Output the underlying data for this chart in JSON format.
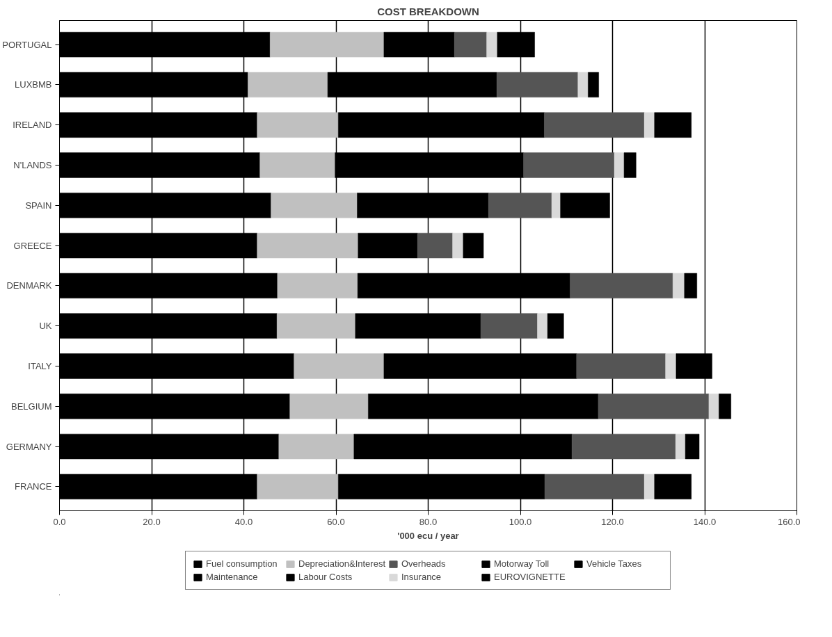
{
  "chart_data": {
    "type": "bar",
    "orientation": "horizontal",
    "stacked": true,
    "title": "COST BREAKDOWN",
    "xlabel": "'000 ecu / year",
    "categories": [
      "PORTUGAL",
      "LUXBMB",
      "IRELAND",
      "N'LANDS",
      "SPAIN",
      "GREECE",
      "DENMARK",
      "UK",
      "ITALY",
      "BELGIUM",
      "GERMANY",
      "FRANCE"
    ],
    "series": [
      {
        "name": "Fuel consumption",
        "color": "#000000",
        "values": [
          45.7,
          40.9,
          42.9,
          43.5,
          45.9,
          42.9,
          47.3,
          47.2,
          50.9,
          50.0,
          47.6,
          42.9
        ]
      },
      {
        "name": "Maintenance",
        "color": "#000000",
        "values": [
          null,
          null,
          null,
          null,
          null,
          null,
          null,
          null,
          null,
          null,
          null,
          null
        ]
      },
      {
        "name": "Depreciation&Interest",
        "color": "#c0c0c0",
        "values": [
          24.7,
          17.3,
          17.6,
          16.3,
          18.7,
          21.9,
          17.4,
          17.0,
          19.5,
          17.0,
          16.3,
          17.6
        ]
      },
      {
        "name": "Labour Costs",
        "color": "#000000",
        "values": [
          15.3,
          36.7,
          44.7,
          40.9,
          28.5,
          12.9,
          46.1,
          27.2,
          41.8,
          49.9,
          47.3,
          44.8
        ]
      },
      {
        "name": "Overheads",
        "color": "#555555",
        "values": [
          7.0,
          17.6,
          21.7,
          19.7,
          13.7,
          7.6,
          22.3,
          12.3,
          19.3,
          24.0,
          22.5,
          21.6
        ]
      },
      {
        "name": "Insurance",
        "color": "#d9d9d9",
        "values": [
          2.3,
          2.2,
          2.2,
          2.1,
          1.9,
          2.3,
          2.5,
          2.2,
          2.3,
          2.2,
          2.1,
          2.2
        ]
      },
      {
        "name": "Motorway Toll",
        "color": "#000000",
        "values": [
          null,
          null,
          null,
          null,
          null,
          null,
          null,
          null,
          null,
          null,
          null,
          null
        ]
      },
      {
        "name": "EUROVIGNETTE",
        "color": "#000000",
        "values": [
          null,
          null,
          null,
          null,
          null,
          null,
          null,
          null,
          null,
          null,
          null,
          null
        ]
      },
      {
        "name": "Vehicle Taxes",
        "color": "#000000",
        "values": [
          8.1,
          2.3,
          8.0,
          2.6,
          10.7,
          4.4,
          2.7,
          3.5,
          7.8,
          2.6,
          3.0,
          8.0
        ]
      }
    ],
    "xlim": [
      0,
      160
    ],
    "xticks": [
      {
        "value": 0,
        "label": "0.0"
      },
      {
        "value": 20,
        "label": "20.0"
      },
      {
        "value": 40,
        "label": "40.0"
      },
      {
        "value": 60,
        "label": "60.0"
      },
      {
        "value": 80,
        "label": "80.0"
      },
      {
        "value": 100,
        "label": "100.0"
      },
      {
        "value": 120,
        "label": "120.0"
      },
      {
        "value": 140,
        "label": "140.0"
      },
      {
        "value": 160,
        "label": "160.0"
      }
    ],
    "grid": "x",
    "legend": "bottom"
  }
}
